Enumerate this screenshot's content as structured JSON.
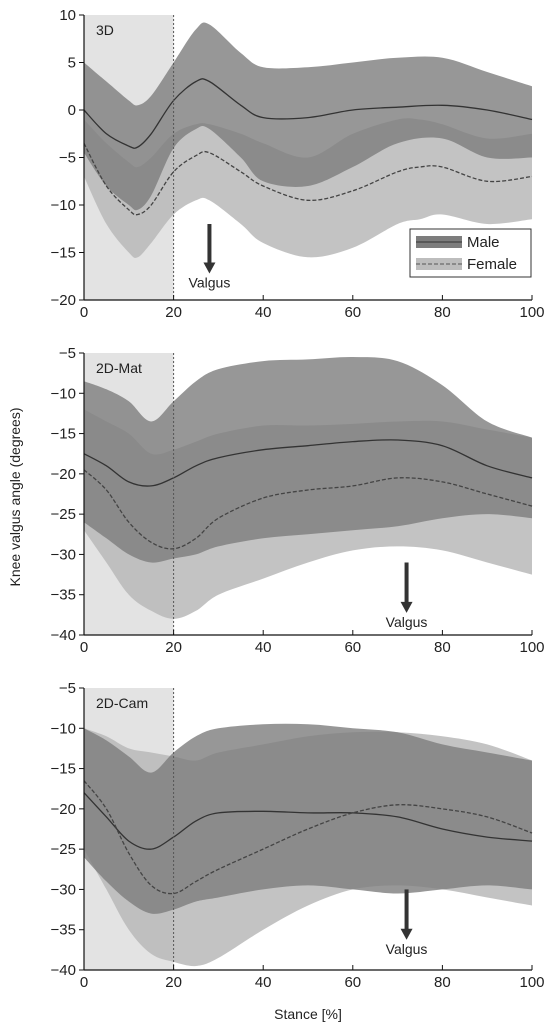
{
  "figure": {
    "ylabel": "Knee valgus angle (degrees)",
    "xlabel": "Stance [%]"
  },
  "legend": {
    "entries": [
      {
        "label": "Male",
        "color": "#7d7d7d",
        "line_style": "solid"
      },
      {
        "label": "Female",
        "color": "#bdbdbd",
        "line_style": "dashed"
      }
    ]
  },
  "colors": {
    "male_band": "#7d7d7d",
    "female_band": "#b9b9b9",
    "male_line": "#333333",
    "female_line": "#444444",
    "shaded_region": "#e3e3e3",
    "arrow": "#333333"
  },
  "chart_data": [
    {
      "type": "area",
      "panel_label": "3D",
      "xlim": [
        0,
        100
      ],
      "ylim": [
        -20,
        10
      ],
      "xticks": [
        0,
        20,
        40,
        60,
        80,
        100
      ],
      "yticks": [
        -20,
        -15,
        -10,
        -5,
        0,
        5,
        10
      ],
      "shaded_x_range": [
        0,
        20
      ],
      "vline_x": 20,
      "legend": true,
      "annotation": {
        "text": "Valgus",
        "x": 28,
        "arrow_from_y": -12,
        "arrow_to_y": -17
      },
      "series": [
        {
          "name": "Male",
          "x": [
            0,
            5,
            10,
            12,
            15,
            20,
            25,
            28,
            35,
            40,
            50,
            60,
            70,
            80,
            90,
            100
          ],
          "mean": [
            0,
            -2.5,
            -3.8,
            -3.9,
            -2.5,
            1,
            3,
            3,
            0.5,
            -0.8,
            -0.8,
            0,
            0.3,
            0.5,
            0,
            -1
          ],
          "upper": [
            5,
            3,
            1,
            0.5,
            1.5,
            5,
            8.5,
            9,
            6,
            4.5,
            4.5,
            5,
            5.5,
            5.5,
            4,
            2.5
          ],
          "lower": [
            -4.5,
            -8,
            -10,
            -10.5,
            -9,
            -4,
            -2,
            -2,
            -5,
            -7.5,
            -8,
            -6,
            -3.5,
            -3,
            -5,
            -5
          ]
        },
        {
          "name": "Female",
          "x": [
            0,
            5,
            10,
            12,
            15,
            20,
            25,
            28,
            35,
            40,
            50,
            60,
            70,
            75,
            80,
            90,
            100
          ],
          "mean": [
            -3.5,
            -8,
            -10.5,
            -11,
            -10,
            -6.5,
            -4.8,
            -4.5,
            -6.5,
            -8,
            -9.5,
            -8.5,
            -6.5,
            -6,
            -6,
            -7.5,
            -7
          ],
          "upper": [
            -1,
            -3.5,
            -5.5,
            -6,
            -5,
            -2.5,
            -1.5,
            -1.5,
            -2.5,
            -3.5,
            -5,
            -2.5,
            -1,
            -1,
            -1.5,
            -3,
            -2.5
          ],
          "lower": [
            -7,
            -12,
            -15,
            -15.5,
            -14,
            -11,
            -9.5,
            -9.5,
            -12,
            -14,
            -15.5,
            -14.5,
            -12,
            -11.5,
            -11,
            -12,
            -11.5
          ]
        }
      ]
    },
    {
      "type": "area",
      "panel_label": "2D-Mat",
      "xlim": [
        0,
        100
      ],
      "ylim": [
        -40,
        -5
      ],
      "xticks": [
        0,
        20,
        40,
        60,
        80,
        100
      ],
      "yticks": [
        -40,
        -35,
        -30,
        -25,
        -20,
        -15,
        -10,
        -5
      ],
      "shaded_x_range": [
        0,
        20
      ],
      "vline_x": 20,
      "legend": false,
      "annotation": {
        "text": "Valgus",
        "x": 72,
        "arrow_from_y": -31,
        "arrow_to_y": -37
      },
      "series": [
        {
          "name": "Male",
          "x": [
            0,
            5,
            10,
            15,
            20,
            25,
            30,
            40,
            50,
            60,
            70,
            80,
            90,
            100
          ],
          "mean": [
            -17.5,
            -19,
            -21,
            -21.5,
            -20.5,
            -19,
            -18,
            -17,
            -16.5,
            -16,
            -15.8,
            -16.5,
            -19,
            -20.5
          ],
          "upper": [
            -8.5,
            -9.5,
            -11,
            -13.5,
            -11,
            -8.5,
            -7,
            -6,
            -5.8,
            -5.5,
            -6,
            -9,
            -13.5,
            -15.5
          ],
          "lower": [
            -26,
            -28,
            -30,
            -31,
            -30.5,
            -30,
            -29,
            -28,
            -27.5,
            -27,
            -26.5,
            -25.5,
            -25,
            -25.5
          ]
        },
        {
          "name": "Female",
          "x": [
            0,
            5,
            10,
            15,
            20,
            25,
            30,
            40,
            50,
            60,
            70,
            80,
            90,
            100
          ],
          "mean": [
            -19.5,
            -22,
            -26,
            -28.5,
            -29.3,
            -28,
            -25.5,
            -23,
            -22,
            -21.5,
            -20.5,
            -21,
            -22.5,
            -24
          ],
          "upper": [
            -12,
            -13.5,
            -15,
            -17.5,
            -17,
            -16,
            -15,
            -14,
            -14,
            -13.8,
            -13.5,
            -13.5,
            -14.5,
            -15.5
          ],
          "lower": [
            -27,
            -31,
            -35,
            -37,
            -38,
            -37,
            -35,
            -33,
            -31,
            -29.5,
            -29,
            -29.5,
            -31,
            -32.5
          ]
        }
      ]
    },
    {
      "type": "area",
      "panel_label": "2D-Cam",
      "xlim": [
        0,
        100
      ],
      "ylim": [
        -40,
        -5
      ],
      "xticks": [
        0,
        20,
        40,
        60,
        80,
        100
      ],
      "yticks": [
        -40,
        -35,
        -30,
        -25,
        -20,
        -15,
        -10,
        -5
      ],
      "shaded_x_range": [
        0,
        20
      ],
      "vline_x": 20,
      "legend": false,
      "annotation": {
        "text": "Valgus",
        "x": 72,
        "arrow_from_y": -30,
        "arrow_to_y": -36
      },
      "series": [
        {
          "name": "Male",
          "x": [
            0,
            5,
            10,
            15,
            20,
            25,
            30,
            40,
            50,
            60,
            70,
            80,
            90,
            100
          ],
          "mean": [
            -18,
            -21,
            -24,
            -25,
            -23.5,
            -21.5,
            -20.5,
            -20.3,
            -20.5,
            -20.5,
            -21,
            -22.5,
            -23.5,
            -24
          ],
          "upper": [
            -10,
            -11.5,
            -13.5,
            -15.5,
            -13,
            -11,
            -10,
            -9.5,
            -9.5,
            -10,
            -10.5,
            -12,
            -13,
            -14
          ],
          "lower": [
            -26,
            -29,
            -31.5,
            -33,
            -32.5,
            -31.5,
            -31,
            -30,
            -29.5,
            -30,
            -30.5,
            -30,
            -29.5,
            -30
          ]
        },
        {
          "name": "Female",
          "x": [
            0,
            5,
            10,
            15,
            20,
            25,
            30,
            40,
            50,
            60,
            70,
            80,
            90,
            100
          ],
          "mean": [
            -16.5,
            -20,
            -25.5,
            -29.5,
            -30.5,
            -29,
            -27.5,
            -25,
            -22.5,
            -20.5,
            -19.5,
            -20,
            -21,
            -23
          ],
          "upper": [
            -10,
            -11,
            -12.5,
            -13,
            -13.5,
            -14,
            -13,
            -12,
            -11,
            -10.5,
            -10.5,
            -11,
            -12,
            -14
          ],
          "lower": [
            -25,
            -30,
            -35,
            -38,
            -39,
            -39.5,
            -38.5,
            -35,
            -32,
            -30,
            -29.5,
            -30,
            -31,
            -32
          ]
        }
      ]
    }
  ]
}
